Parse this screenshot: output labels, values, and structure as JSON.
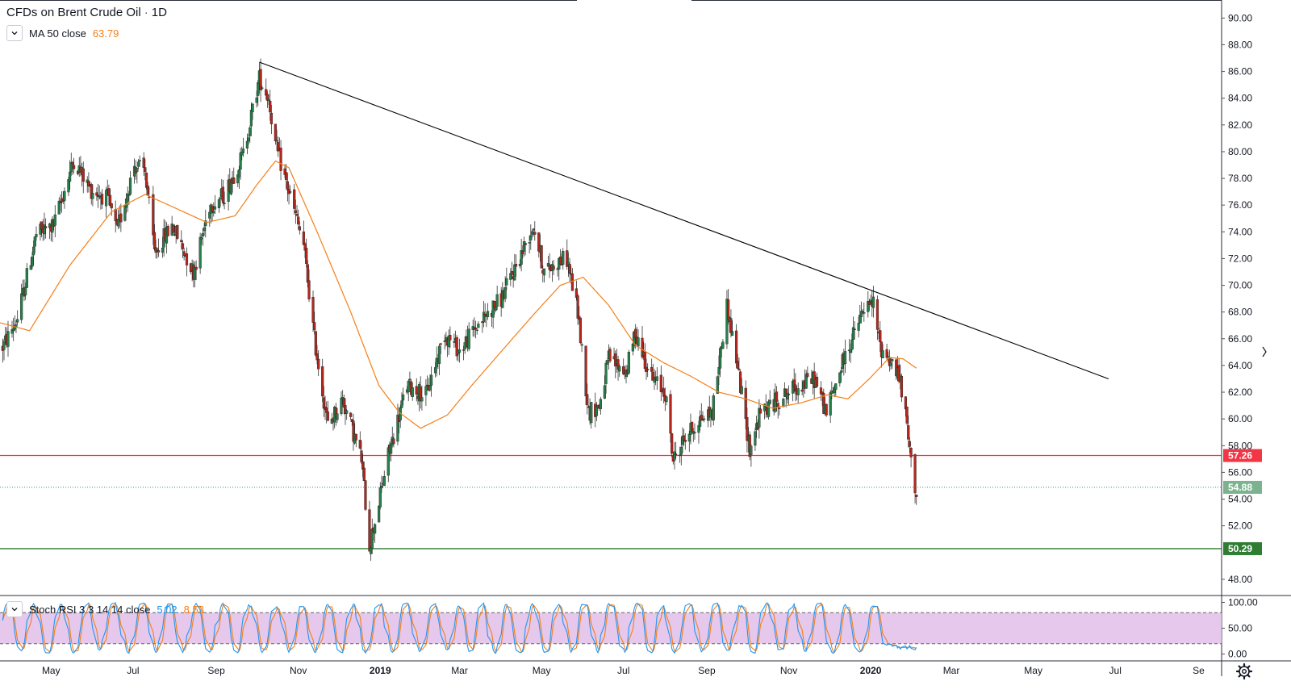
{
  "chart": {
    "title": "CFDs on Brent Crude Oil",
    "interval": "1D",
    "separator": "·"
  },
  "legend": {
    "ma_label": "MA 50 close",
    "ma_value": "63.79",
    "rsi_label": "Stoch RSI 3 3 14 14 close",
    "rsi_k_value": "5.02",
    "rsi_d_value": "8.53"
  },
  "colors": {
    "up": "#26804a",
    "down": "#b5271d",
    "ma": "#f57f17",
    "stoch_k": "#2196f3",
    "stoch_d": "#f57f17",
    "band_fill": "#e1bee7",
    "resistance": "#f23645",
    "support": "#2e7d32",
    "last_price": "#7bb38e",
    "trendline": "#000000"
  },
  "chart_data": {
    "type": "candlestick",
    "y_axis": {
      "min": 46.5,
      "max": 91.0,
      "ticks": [
        "90.00",
        "88.00",
        "86.00",
        "84.00",
        "82.00",
        "80.00",
        "78.00",
        "76.00",
        "74.00",
        "72.00",
        "70.00",
        "68.00",
        "66.00",
        "64.00",
        "62.00",
        "60.00",
        "58.00",
        "56.00",
        "54.00",
        "52.00",
        "48.00"
      ]
    },
    "x_axis": {
      "ticks": [
        {
          "label": "May",
          "date": "2018-05-01"
        },
        {
          "label": "Jul",
          "date": "2018-07-01"
        },
        {
          "label": "Sep",
          "date": "2018-09-01"
        },
        {
          "label": "Nov",
          "date": "2018-11-01"
        },
        {
          "label": "2019",
          "date": "2019-01-01",
          "bold": true
        },
        {
          "label": "Mar",
          "date": "2019-03-01"
        },
        {
          "label": "May",
          "date": "2019-05-01"
        },
        {
          "label": "Jul",
          "date": "2019-07-01"
        },
        {
          "label": "Sep",
          "date": "2019-09-01"
        },
        {
          "label": "Nov",
          "date": "2019-11-01"
        },
        {
          "label": "2020",
          "date": "2020-01-01",
          "bold": true
        },
        {
          "label": "Mar",
          "date": "2020-03-01"
        },
        {
          "label": "May",
          "date": "2020-05-01"
        },
        {
          "label": "Jul",
          "date": "2020-07-01"
        },
        {
          "label": "Se",
          "date": "2020-09-01"
        }
      ]
    },
    "price_anchors": [
      [
        "2018-03-24",
        65.0
      ],
      [
        "2018-04-06",
        67.5
      ],
      [
        "2018-04-20",
        73.8
      ],
      [
        "2018-05-03",
        74.5
      ],
      [
        "2018-05-18",
        79.4
      ],
      [
        "2018-05-30",
        77.2
      ],
      [
        "2018-06-12",
        76.5
      ],
      [
        "2018-06-19",
        74.0
      ],
      [
        "2018-07-02",
        79.0
      ],
      [
        "2018-07-10",
        78.5
      ],
      [
        "2018-07-17",
        72.5
      ],
      [
        "2018-07-30",
        74.5
      ],
      [
        "2018-08-15",
        71.0
      ],
      [
        "2018-08-27",
        76.0
      ],
      [
        "2018-09-07",
        76.8
      ],
      [
        "2018-09-21",
        79.8
      ],
      [
        "2018-10-03",
        85.5
      ],
      [
        "2018-10-10",
        84.0
      ],
      [
        "2018-10-15",
        80.5
      ],
      [
        "2018-10-25",
        77.0
      ],
      [
        "2018-11-05",
        73.0
      ],
      [
        "2018-11-13",
        66.0
      ],
      [
        "2018-11-23",
        59.5
      ],
      [
        "2018-12-04",
        61.5
      ],
      [
        "2018-12-18",
        57.0
      ],
      [
        "2018-12-24",
        50.5
      ],
      [
        "2018-12-31",
        53.8
      ],
      [
        "2019-01-07",
        57.3
      ],
      [
        "2019-01-21",
        62.5
      ],
      [
        "2019-02-04",
        61.8
      ],
      [
        "2019-02-18",
        66.4
      ],
      [
        "2019-03-01",
        65.1
      ],
      [
        "2019-03-15",
        67.1
      ],
      [
        "2019-04-01",
        69.0
      ],
      [
        "2019-04-10",
        71.0
      ],
      [
        "2019-04-25",
        74.5
      ],
      [
        "2019-05-03",
        71.0
      ],
      [
        "2019-05-14",
        71.8
      ],
      [
        "2019-05-20",
        72.0
      ],
      [
        "2019-05-28",
        68.0
      ],
      [
        "2019-06-05",
        60.5
      ],
      [
        "2019-06-13",
        61.0
      ],
      [
        "2019-06-20",
        64.5
      ],
      [
        "2019-07-03",
        63.5
      ],
      [
        "2019-07-10",
        66.5
      ],
      [
        "2019-07-22",
        63.0
      ],
      [
        "2019-08-01",
        62.0
      ],
      [
        "2019-08-07",
        56.9
      ],
      [
        "2019-08-15",
        58.5
      ],
      [
        "2019-08-27",
        60.0
      ],
      [
        "2019-09-05",
        60.5
      ],
      [
        "2019-09-16",
        68.5
      ],
      [
        "2019-09-23",
        64.5
      ],
      [
        "2019-10-03",
        57.7
      ],
      [
        "2019-10-11",
        60.5
      ],
      [
        "2019-10-25",
        61.5
      ],
      [
        "2019-11-05",
        62.3
      ],
      [
        "2019-11-20",
        63.0
      ],
      [
        "2019-11-29",
        60.5
      ],
      [
        "2019-12-12",
        64.5
      ],
      [
        "2019-12-27",
        68.2
      ],
      [
        "2020-01-03",
        68.6
      ],
      [
        "2020-01-08",
        65.4
      ],
      [
        "2020-01-15",
        64.5
      ],
      [
        "2020-01-22",
        63.2
      ],
      [
        "2020-01-28",
        59.5
      ],
      [
        "2020-01-31",
        56.6
      ],
      [
        "2020-02-04",
        54.5
      ]
    ],
    "ma50_anchors": [
      [
        "2018-03-24",
        67.2
      ],
      [
        "2018-04-15",
        66.6
      ],
      [
        "2018-05-15",
        71.5
      ],
      [
        "2018-06-15",
        75.5
      ],
      [
        "2018-07-10",
        76.8
      ],
      [
        "2018-08-01",
        75.8
      ],
      [
        "2018-08-25",
        74.7
      ],
      [
        "2018-09-15",
        75.2
      ],
      [
        "2018-10-01",
        77.5
      ],
      [
        "2018-10-15",
        79.3
      ],
      [
        "2018-10-25",
        78.8
      ],
      [
        "2018-11-15",
        74.0
      ],
      [
        "2018-12-10",
        68.0
      ],
      [
        "2018-12-31",
        62.5
      ],
      [
        "2019-01-15",
        60.5
      ],
      [
        "2019-01-31",
        59.3
      ],
      [
        "2019-02-20",
        60.3
      ],
      [
        "2019-03-10",
        62.5
      ],
      [
        "2019-04-05",
        65.5
      ],
      [
        "2019-04-25",
        67.8
      ],
      [
        "2019-05-15",
        70.0
      ],
      [
        "2019-06-01",
        70.6
      ],
      [
        "2019-06-20",
        68.5
      ],
      [
        "2019-07-10",
        65.5
      ],
      [
        "2019-07-31",
        64.2
      ],
      [
        "2019-08-20",
        63.2
      ],
      [
        "2019-09-10",
        62.0
      ],
      [
        "2019-09-30",
        61.5
      ],
      [
        "2019-10-20",
        60.8
      ],
      [
        "2019-11-10",
        61.2
      ],
      [
        "2019-11-30",
        61.8
      ],
      [
        "2019-12-15",
        61.5
      ],
      [
        "2019-12-31",
        63.0
      ],
      [
        "2020-01-15",
        64.6
      ],
      [
        "2020-01-25",
        64.5
      ],
      [
        "2020-02-04",
        63.8
      ]
    ],
    "trendline": {
      "start": [
        "2018-10-03",
        86.7
      ],
      "end": [
        "2020-06-26",
        63.0
      ]
    },
    "resistance_level": {
      "value": 57.26,
      "label": "57.26"
    },
    "support_level": {
      "value": 50.29,
      "label": "50.29"
    },
    "last_price": {
      "value": 54.88,
      "label": "54.88"
    },
    "stoch_rsi": {
      "y_ticks": [
        "100.00",
        "50.00",
        "0.00"
      ],
      "upper_band": 80,
      "lower_band": 20,
      "k_value": 5.02,
      "d_value": 8.53
    }
  }
}
